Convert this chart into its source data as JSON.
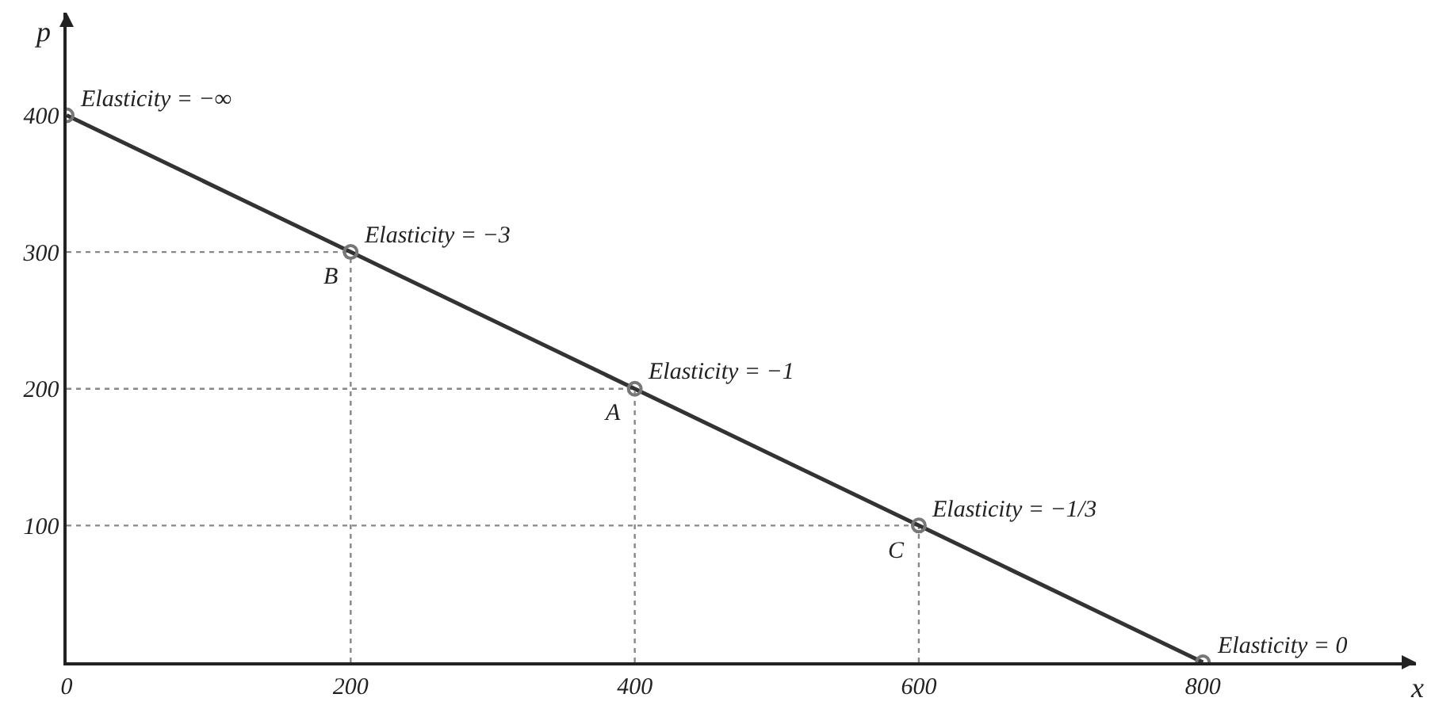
{
  "chart_data": {
    "type": "line",
    "xlabel": "x",
    "ylabel": "p",
    "x": [
      0,
      200,
      400,
      600,
      800
    ],
    "series": [
      {
        "color": "#333333",
        "values": [
          400,
          300,
          200,
          100,
          0
        ]
      }
    ],
    "marker": "circle",
    "line_style": "solid",
    "grid": false,
    "legend": false,
    "xlim": [
      0,
      950
    ],
    "ylim": [
      0,
      475
    ],
    "xticks": [
      0,
      200,
      400,
      600,
      800
    ],
    "yticks": [
      100,
      200,
      300,
      400
    ],
    "ref_lines": [
      {
        "axis": "x",
        "value": 200,
        "label": null,
        "line_style": "dotted",
        "color": "#888888"
      },
      {
        "axis": "x",
        "value": 400,
        "label": null,
        "line_style": "dotted",
        "color": "#888888"
      },
      {
        "axis": "x",
        "value": 600,
        "label": null,
        "line_style": "dotted",
        "color": "#888888"
      },
      {
        "axis": "y",
        "value": 300,
        "label": null,
        "line_style": "dotted",
        "color": "#888888"
      },
      {
        "axis": "y",
        "value": 200,
        "label": null,
        "line_style": "dotted",
        "color": "#888888"
      },
      {
        "axis": "y",
        "value": 100,
        "label": null,
        "line_style": "dotted",
        "color": "#888888"
      }
    ],
    "annotations": [
      {
        "text": "Elasticity = −∞",
        "x": 0,
        "y": 400
      },
      {
        "text": "Elasticity = −3",
        "x": 200,
        "y": 300
      },
      {
        "text": "Elasticity = −1",
        "x": 400,
        "y": 200
      },
      {
        "text": "Elasticity = −1/3",
        "x": 600,
        "y": 100
      },
      {
        "text": "Elasticity = 0",
        "x": 800,
        "y": 0
      },
      {
        "text": "B",
        "x": 200,
        "y": 300
      },
      {
        "text": "A",
        "x": 400,
        "y": 200
      },
      {
        "text": "C",
        "x": 600,
        "y": 100
      }
    ]
  }
}
